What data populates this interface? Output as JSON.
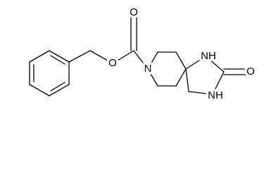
{
  "atoms": [
    {
      "label": "O"
    },
    {
      "label": "O"
    },
    {
      "label": "N"
    },
    {
      "label": "NH"
    },
    {
      "label": "O"
    },
    {
      "label": "NH"
    }
  ]
}
